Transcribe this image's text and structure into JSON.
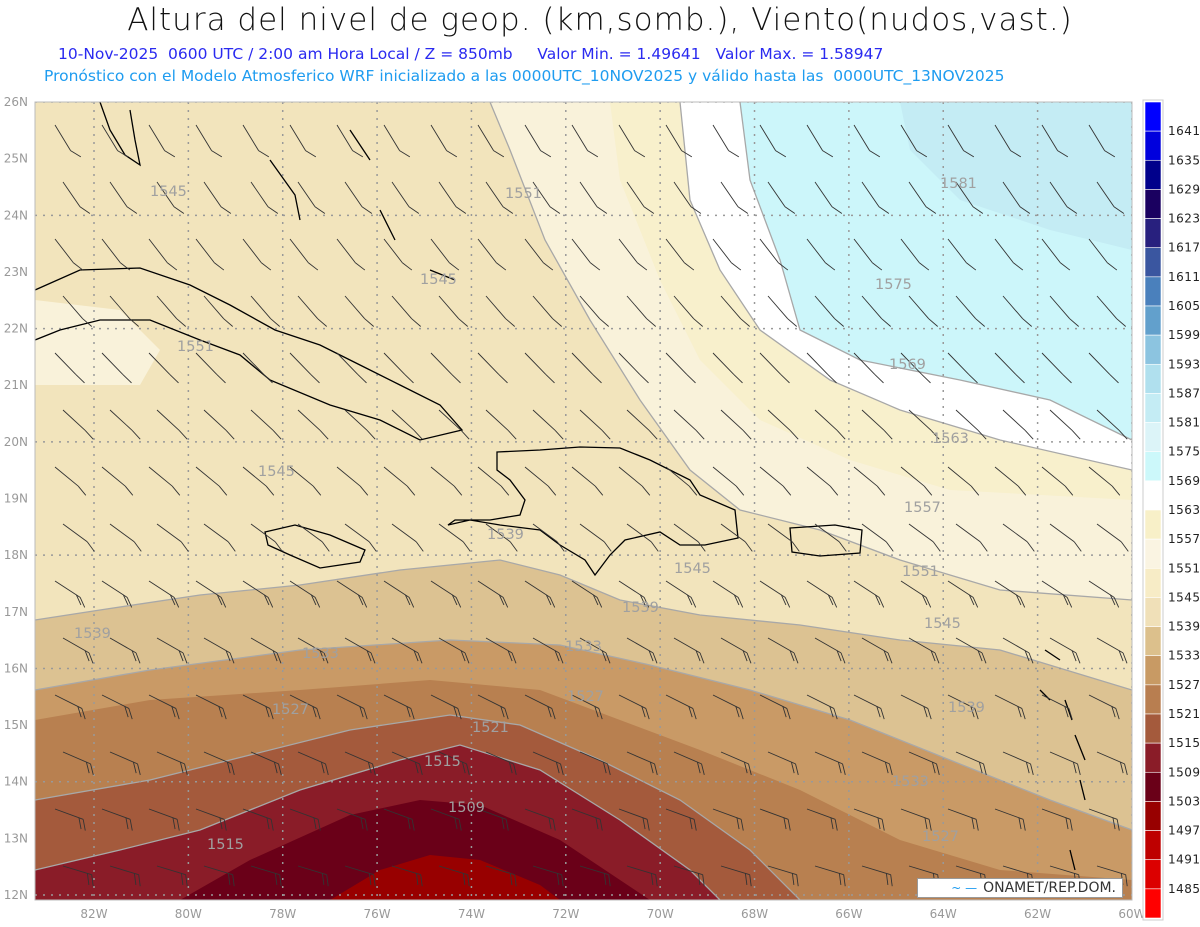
{
  "title": "Altura del nivel de geop. (km,somb.), Viento(nudos,vast.)",
  "subtitle": {
    "datetime": "10-Nov-2025  0600 UTC / 2:00 am Hora Local / Z = 850mb",
    "min": "Valor Min. = 1.49641",
    "max": "Valor Max. = 1.58947",
    "model_info": "Pronóstico con el Modelo Atmosferico WRF inicializado a las 0000UTC_10NOV2025 y válido hasta las  0000UTC_13NOV2025"
  },
  "axes": {
    "lon_labels": [
      "82W",
      "80W",
      "78W",
      "76W",
      "74W",
      "72W",
      "70W",
      "68W",
      "66W",
      "64W",
      "62W",
      "60W"
    ],
    "lat_labels": [
      "26N",
      "25N",
      "24N",
      "23N",
      "22N",
      "21N",
      "20N",
      "19N",
      "18N",
      "17N",
      "16N",
      "15N",
      "14N",
      "13N",
      "12N"
    ]
  },
  "colorbar": {
    "labels": [
      "1641",
      "1635",
      "1629",
      "1623",
      "1617",
      "1611",
      "1605",
      "1599",
      "1593",
      "1587",
      "1581",
      "1575",
      "1569",
      "1563",
      "1557",
      "1551",
      "1545",
      "1539",
      "1533",
      "1527",
      "1521",
      "1515",
      "1509",
      "1503",
      "1497",
      "1491",
      "1485"
    ],
    "colors": [
      "#0000ff",
      "#0000dd",
      "#00008b",
      "#1a0060",
      "#28207e",
      "#3a56a0",
      "#4a80bc",
      "#62a0cc",
      "#8cc4e0",
      "#b0e0ee",
      "#c4ecf4",
      "#dcf4f8",
      "#ccf8fa",
      "#ffffff",
      "#f8f0c8",
      "#faf4e2",
      "#f7ecc6",
      "#f0e0b8",
      "#dcc08c",
      "#c89a64",
      "#b87e50",
      "#a45a3c",
      "#8a1c28",
      "#6a0018",
      "#980000",
      "#be0000",
      "#dc0000",
      "#ff0000"
    ]
  },
  "contour_labels": [
    "1545",
    "1551",
    "1545",
    "1551",
    "1581",
    "1575",
    "1569",
    "1563",
    "1557",
    "1551",
    "1545",
    "1539",
    "1545",
    "1539",
    "1545",
    "1539",
    "1533",
    "1533",
    "1527",
    "1527",
    "1521",
    "1515",
    "1509",
    "1515",
    "1539",
    "1533",
    "1527"
  ],
  "credit": "ONAMET/REP.DOM.",
  "credit_swatch": "~ —"
}
